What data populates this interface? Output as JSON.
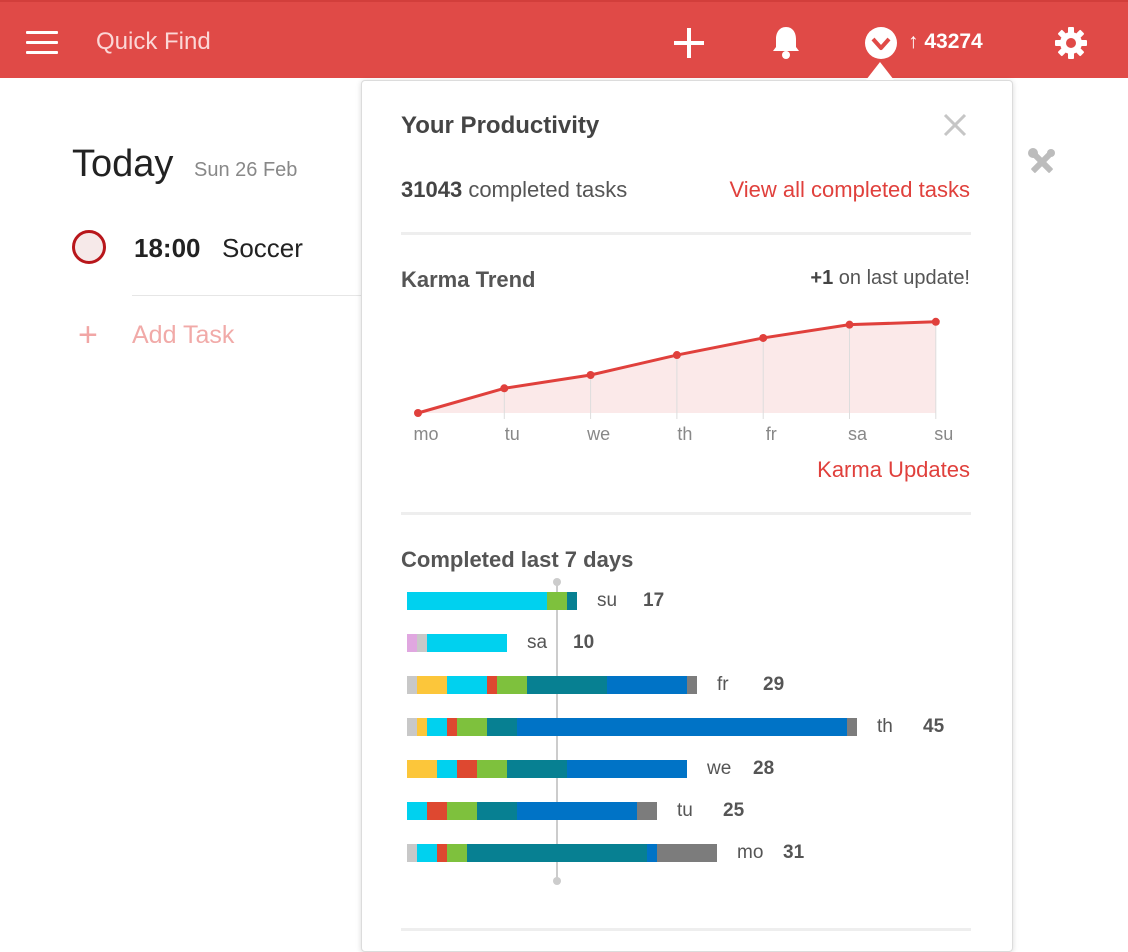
{
  "header": {
    "search_placeholder": "Quick Find",
    "karma_arrow": "↑",
    "karma_points": "43274",
    "colors": {
      "bar": "#e04a47",
      "accent": "#e0403c"
    }
  },
  "today": {
    "title": "Today",
    "date": "Sun 26 Feb",
    "tasks": [
      {
        "time": "18:00",
        "name": "Soccer"
      }
    ],
    "add_task": "Add Task"
  },
  "productivity": {
    "title": "Your Productivity",
    "completed_count": "31043",
    "completed_suffix": "completed tasks",
    "view_all": "View all completed tasks",
    "karma_trend_title": "Karma Trend",
    "karma_update_value": "+1",
    "karma_update_suffix": "on last update!",
    "karma_updates_link": "Karma Updates",
    "completed_last_title": "Completed last 7 days"
  },
  "chart_data": [
    {
      "type": "area",
      "title": "Karma Trend",
      "categories": [
        "mo",
        "tu",
        "we",
        "th",
        "fr",
        "sa",
        "su"
      ],
      "values": [
        0,
        26,
        40,
        61,
        79,
        93,
        96
      ],
      "color": "#e0403c",
      "fill": "#fbe9e9"
    },
    {
      "type": "bar",
      "orientation": "horizontal-stacked",
      "title": "Completed last 7 days",
      "categories": [
        "su",
        "sa",
        "fr",
        "th",
        "we",
        "tu",
        "mo"
      ],
      "totals": [
        17,
        10,
        29,
        45,
        28,
        25,
        31
      ],
      "segments": [
        [
          [
            "#00d1ef",
            14
          ],
          [
            "#7ec13d",
            2
          ],
          [
            "#078092",
            1
          ]
        ],
        [
          [
            "#e0a7e0",
            1
          ],
          [
            "#c8c8c8",
            1
          ],
          [
            "#00d1ef",
            8
          ]
        ],
        [
          [
            "#c8c8c8",
            1
          ],
          [
            "#fcc63a",
            3
          ],
          [
            "#00d1ef",
            4
          ],
          [
            "#de4830",
            1
          ],
          [
            "#7ec13d",
            3
          ],
          [
            "#078092",
            8
          ],
          [
            "#0073c6",
            8
          ],
          [
            "#7c7c7c",
            1
          ]
        ],
        [
          [
            "#c8c8c8",
            1
          ],
          [
            "#fcc63a",
            1
          ],
          [
            "#00d1ef",
            2
          ],
          [
            "#de4830",
            1
          ],
          [
            "#7ec13d",
            3
          ],
          [
            "#078092",
            3
          ],
          [
            "#0073c6",
            33
          ],
          [
            "#7c7c7c",
            1
          ]
        ],
        [
          [
            "#fcc63a",
            3
          ],
          [
            "#00d1ef",
            2
          ],
          [
            "#de4830",
            2
          ],
          [
            "#7ec13d",
            3
          ],
          [
            "#078092",
            6
          ],
          [
            "#0073c6",
            12
          ]
        ],
        [
          [
            "#00d1ef",
            2
          ],
          [
            "#de4830",
            2
          ],
          [
            "#7ec13d",
            3
          ],
          [
            "#078092",
            4
          ],
          [
            "#0073c6",
            12
          ],
          [
            "#7c7c7c",
            2
          ]
        ],
        [
          [
            "#c8c8c8",
            1
          ],
          [
            "#00d1ef",
            2
          ],
          [
            "#de4830",
            1
          ],
          [
            "#7ec13d",
            2
          ],
          [
            "#078092",
            18
          ],
          [
            "#0073c6",
            1
          ],
          [
            "#7c7c7c",
            6
          ]
        ]
      ]
    }
  ]
}
